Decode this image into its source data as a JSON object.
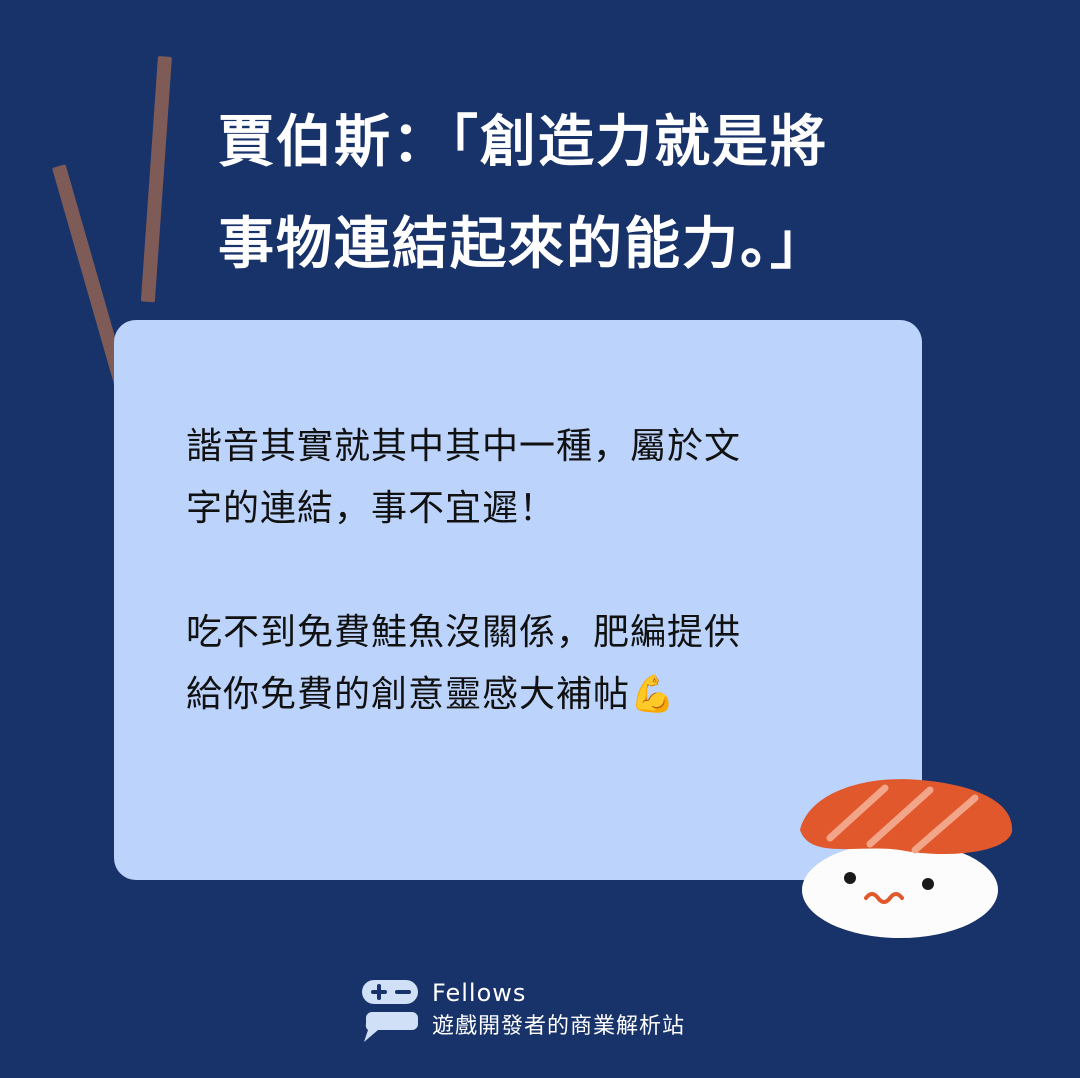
{
  "title": {
    "line1": "賈伯斯：「創造力就是將",
    "line2": "事物連結起來的能力。」"
  },
  "card": {
    "paragraph1": {
      "line1": "諧音其實就其中其中一種，屬於文",
      "line2": "字的連結，事不宜遲！"
    },
    "paragraph2": {
      "line1": "吃不到免費鮭魚沒關係，肥編提供",
      "line2": "給你免費的創意靈感大補帖💪"
    }
  },
  "brand": {
    "name": "Fellows",
    "tagline": "遊戲開發者的商業解析站"
  },
  "colors": {
    "background": "#18326a",
    "card": "#bcd3fb",
    "chopstick": "#7e5b56",
    "salmon": "#e0582c",
    "rice": "#fdfcfc",
    "logo": "#cfe0f7"
  },
  "icons": [
    "chopsticks-icon",
    "salmon-sushi-icon",
    "gamepad-chat-logo-icon",
    "flexed-biceps-emoji"
  ]
}
